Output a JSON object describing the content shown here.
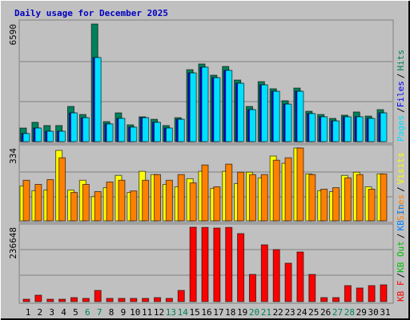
{
  "chart_data": [
    {
      "type": "bar",
      "title": "Daily usage for December 2025",
      "ylim": [
        0,
        6590
      ],
      "yticks": [
        6590
      ],
      "legend_separator": "/",
      "series": [
        {
          "name": "Hits",
          "color": "#00805c",
          "values": [
            760,
            1080,
            900,
            900,
            1970,
            1520,
            6590,
            1120,
            1610,
            940,
            1390,
            1250,
            900,
            1340,
            4030,
            4350,
            3720,
            4210,
            3450,
            1970,
            3360,
            2960,
            2290,
            3000,
            1700,
            1520,
            1300,
            1480,
            1660,
            1430,
            1790
          ]
        },
        {
          "name": "Files",
          "color": "#0000ff",
          "values": [
            450,
            760,
            580,
            580,
            1610,
            1340,
            4710,
            990,
            1300,
            810,
            1340,
            1080,
            760,
            1250,
            3850,
            4170,
            3580,
            3990,
            3270,
            1790,
            3180,
            2820,
            2100,
            2820,
            1570,
            1390,
            1160,
            1390,
            1390,
            1300,
            1610
          ]
        },
        {
          "name": "Pages",
          "color": "#00e0ff",
          "values": [
            450,
            760,
            580,
            580,
            1610,
            1340,
            4710,
            990,
            1300,
            810,
            1340,
            1080,
            760,
            1250,
            3850,
            4170,
            3580,
            3990,
            3270,
            1790,
            3180,
            2820,
            2100,
            2820,
            1570,
            1390,
            1160,
            1390,
            1390,
            1300,
            1610
          ]
        }
      ]
    },
    {
      "type": "bar",
      "ylim": [
        0,
        334
      ],
      "yticks": [
        334
      ],
      "legend_separator": "/",
      "series": [
        {
          "name": "Visits",
          "color": "#ffff00",
          "values": [
            160,
            138,
            141,
            323,
            141,
            186,
            111,
            152,
            208,
            130,
            227,
            212,
            167,
            156,
            193,
            227,
            149,
            227,
            171,
            223,
            197,
            297,
            264,
            334,
            215,
            138,
            134,
            208,
            223,
            156,
            215
          ]
        },
        {
          "name": "Sites",
          "color": "#ff8000",
          "values": [
            186,
            167,
            189,
            289,
            130,
            167,
            134,
            178,
            186,
            137,
            186,
            212,
            186,
            212,
            174,
            256,
            156,
            260,
            223,
            212,
            212,
            278,
            289,
            334,
            212,
            145,
            152,
            197,
            212,
            145,
            215
          ]
        }
      ]
    },
    {
      "type": "bar",
      "ylim": [
        0,
        236648
      ],
      "yticks": [
        236648
      ],
      "legend_separator": "/",
      "categories": [
        "1",
        "2",
        "3",
        "4",
        "5",
        "6",
        "7",
        "8",
        "9",
        "10",
        "11",
        "12",
        "13",
        "14",
        "15",
        "16",
        "17",
        "18",
        "19",
        "20",
        "21",
        "22",
        "23",
        "24",
        "25",
        "26",
        "27",
        "28",
        "29",
        "30",
        "31"
      ],
      "category_colors": [
        "#000000",
        "#000000",
        "#000000",
        "#000000",
        "#000000",
        "#00805c",
        "#00805c",
        "#000000",
        "#000000",
        "#000000",
        "#000000",
        "#000000",
        "#00805c",
        "#00805c",
        "#000000",
        "#000000",
        "#000000",
        "#000000",
        "#000000",
        "#00805c",
        "#00805c",
        "#000000",
        "#000000",
        "#000000",
        "#000000",
        "#000000",
        "#00805c",
        "#00805c",
        "#000000",
        "#000000",
        "#000000"
      ],
      "series": [
        {
          "name": "KB In",
          "color": "#0080ff",
          "values": [
            null,
            null,
            null,
            null,
            null,
            null,
            null,
            null,
            null,
            null,
            null,
            null,
            null,
            null,
            null,
            null,
            null,
            null,
            null,
            null,
            null,
            null,
            null,
            null,
            null,
            null,
            null,
            null,
            null,
            null,
            null
          ]
        },
        {
          "name": "KB Out",
          "color": "#00c000",
          "values": [
            null,
            null,
            null,
            null,
            null,
            null,
            null,
            null,
            null,
            null,
            null,
            null,
            null,
            null,
            null,
            null,
            null,
            null,
            null,
            null,
            null,
            null,
            null,
            null,
            null,
            null,
            null,
            null,
            null,
            null,
            null
          ]
        },
        {
          "name": "KB F",
          "color": "#ff0000",
          "values": [
            7600,
            20400,
            7600,
            7600,
            12700,
            10200,
            35600,
            10200,
            10200,
            10200,
            10200,
            12700,
            10200,
            35600,
            236648,
            236000,
            234000,
            236000,
            216300,
            86500,
            180700,
            165400,
            122200,
            157800,
            86500,
            12700,
            12700,
            50900,
            43300,
            50900,
            53400
          ]
        }
      ]
    }
  ]
}
